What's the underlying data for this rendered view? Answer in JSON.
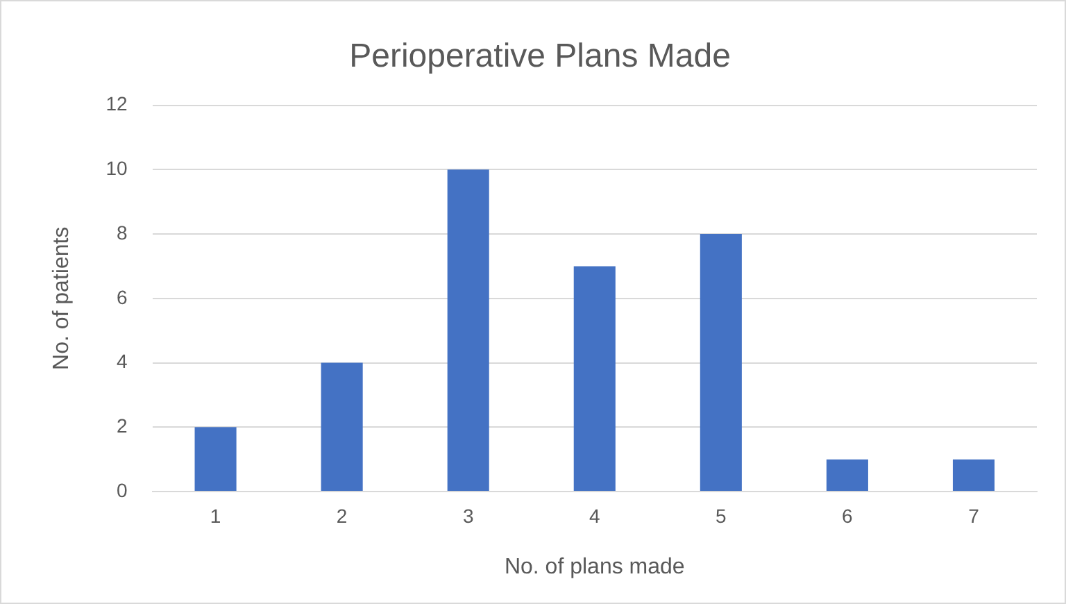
{
  "chart_data": {
    "type": "bar",
    "title": "Perioperative Plans Made",
    "xlabel": "No. of plans made",
    "ylabel": "No. of patients",
    "categories": [
      "1",
      "2",
      "3",
      "4",
      "5",
      "6",
      "7"
    ],
    "values": [
      2,
      4,
      10,
      7,
      8,
      1,
      1
    ],
    "color": "#4472c4",
    "ylim": [
      0,
      12
    ],
    "yticks": [
      0,
      2,
      4,
      6,
      8,
      10,
      12
    ],
    "grid": "y",
    "legend": false
  }
}
